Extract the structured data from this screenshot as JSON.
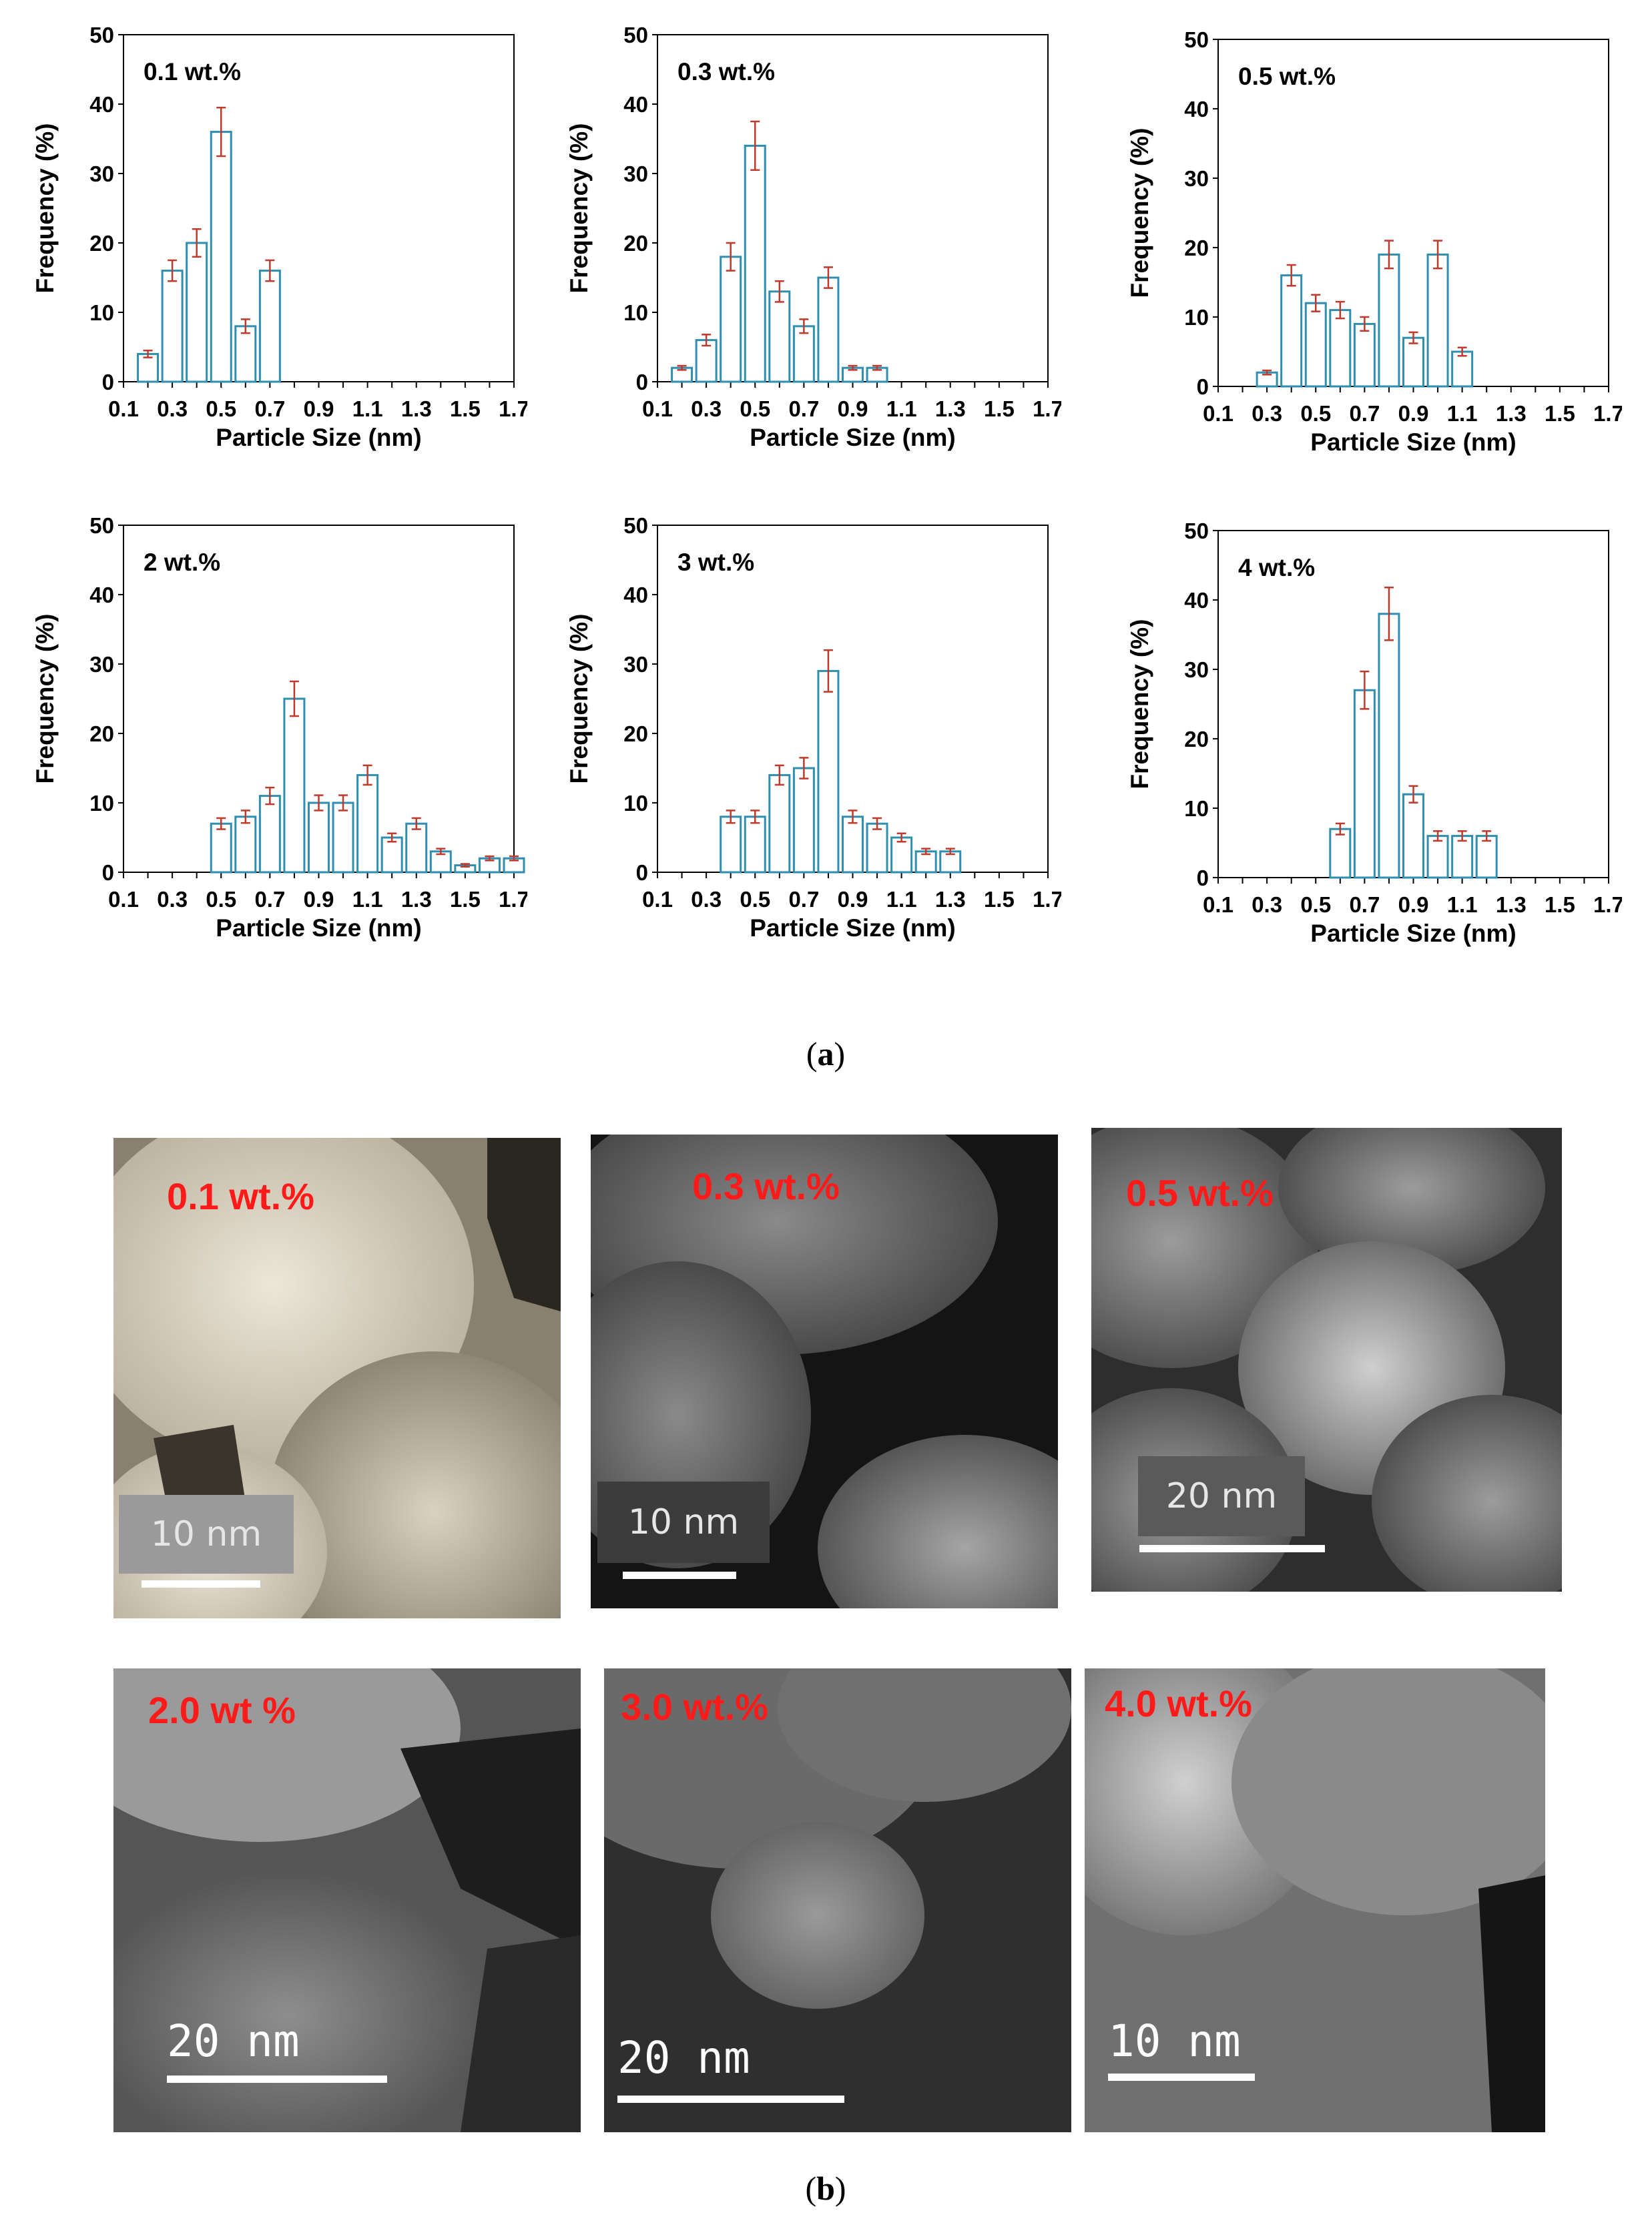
{
  "captions": {
    "a": "a",
    "b": "b"
  },
  "chart_data": [
    {
      "type": "bar",
      "panel_label": "0.1 wt.%",
      "xlabel": "Particle Size (nm)",
      "ylabel": "Frequency (%)",
      "ylim": [
        0,
        50
      ],
      "yticks": [
        0,
        10,
        20,
        30,
        40,
        50
      ],
      "xlim": [
        0.1,
        1.7
      ],
      "xticks": [
        "0.1",
        "0.3",
        "0.5",
        "0.7",
        "0.9",
        "1.1",
        "1.3",
        "1.5",
        "1.7"
      ],
      "x": [
        0.2,
        0.3,
        0.4,
        0.5,
        0.6,
        0.7
      ],
      "values": [
        4,
        16,
        20,
        36,
        8,
        16
      ],
      "errors": [
        0.5,
        1.5,
        2,
        3.5,
        1,
        1.5
      ]
    },
    {
      "type": "bar",
      "panel_label": "0.3 wt.%",
      "xlabel": "Particle Size (nm)",
      "ylabel": "Frequency (%)",
      "ylim": [
        0,
        50
      ],
      "yticks": [
        0,
        10,
        20,
        30,
        40,
        50
      ],
      "xlim": [
        0.1,
        1.7
      ],
      "xticks": [
        "0.1",
        "0.3",
        "0.5",
        "0.7",
        "0.9",
        "1.1",
        "1.3",
        "1.5",
        "1.7"
      ],
      "x": [
        0.2,
        0.3,
        0.4,
        0.5,
        0.6,
        0.7,
        0.8,
        0.9,
        1.0
      ],
      "values": [
        2,
        6,
        18,
        34,
        13,
        8,
        15,
        2,
        2
      ],
      "errors": [
        0.3,
        0.8,
        2,
        3.5,
        1.5,
        1,
        1.5,
        0.3,
        0.3
      ]
    },
    {
      "type": "bar",
      "panel_label": "0.5 wt.%",
      "xlabel": "Particle Size (nm)",
      "ylabel": "Frequency (%)",
      "ylim": [
        0,
        50
      ],
      "yticks": [
        0,
        10,
        20,
        30,
        40,
        50
      ],
      "xlim": [
        0.1,
        1.7
      ],
      "xticks": [
        "0.1",
        "0.3",
        "0.5",
        "0.7",
        "0.9",
        "1.1",
        "1.3",
        "1.5",
        "1.7"
      ],
      "x": [
        0.3,
        0.4,
        0.5,
        0.6,
        0.7,
        0.8,
        0.9,
        1.0,
        1.1
      ],
      "values": [
        2,
        16,
        12,
        11,
        9,
        19,
        7,
        19,
        5
      ],
      "errors": [
        0.3,
        1.5,
        1.2,
        1.2,
        1,
        2,
        0.8,
        2,
        0.6
      ]
    },
    {
      "type": "bar",
      "panel_label": "2 wt.%",
      "xlabel": "Particle Size (nm)",
      "ylabel": "Frequency (%)",
      "ylim": [
        0,
        50
      ],
      "yticks": [
        0,
        10,
        20,
        30,
        40,
        50
      ],
      "xlim": [
        0.1,
        1.7
      ],
      "xticks": [
        "0.1",
        "0.3",
        "0.5",
        "0.7",
        "0.9",
        "1.1",
        "1.3",
        "1.5",
        "1.7"
      ],
      "x": [
        0.5,
        0.6,
        0.7,
        0.8,
        0.9,
        1.0,
        1.1,
        1.2,
        1.3,
        1.4,
        1.5,
        1.6,
        1.7
      ],
      "values": [
        7,
        8,
        11,
        25,
        10,
        10,
        14,
        5,
        7,
        3,
        1,
        2,
        2
      ],
      "errors": [
        0.8,
        0.9,
        1.2,
        2.5,
        1.1,
        1.1,
        1.4,
        0.6,
        0.8,
        0.4,
        0.2,
        0.3,
        0.3
      ]
    },
    {
      "type": "bar",
      "panel_label": "3 wt.%",
      "xlabel": "Particle Size (nm)",
      "ylabel": "Frequency (%)",
      "ylim": [
        0,
        50
      ],
      "yticks": [
        0,
        10,
        20,
        30,
        40,
        50
      ],
      "xlim": [
        0.1,
        1.7
      ],
      "xticks": [
        "0.1",
        "0.3",
        "0.5",
        "0.7",
        "0.9",
        "1.1",
        "1.3",
        "1.5",
        "1.7"
      ],
      "x": [
        0.4,
        0.5,
        0.6,
        0.7,
        0.8,
        0.9,
        1.0,
        1.1,
        1.2,
        1.3
      ],
      "values": [
        8,
        8,
        14,
        15,
        29,
        8,
        7,
        5,
        3,
        3
      ],
      "errors": [
        0.9,
        0.9,
        1.4,
        1.5,
        3,
        0.9,
        0.8,
        0.6,
        0.4,
        0.4
      ]
    },
    {
      "type": "bar",
      "panel_label": "4 wt.%",
      "xlabel": "Particle Size (nm)",
      "ylabel": "Frequency (%)",
      "ylim": [
        0,
        50
      ],
      "yticks": [
        0,
        10,
        20,
        30,
        40,
        50
      ],
      "xlim": [
        0.1,
        1.7
      ],
      "xticks": [
        "0.1",
        "0.3",
        "0.5",
        "0.7",
        "0.9",
        "1.1",
        "1.3",
        "1.5",
        "1.7"
      ],
      "x": [
        0.6,
        0.7,
        0.8,
        0.9,
        1.0,
        1.1,
        1.2
      ],
      "values": [
        7,
        27,
        38,
        12,
        6,
        6,
        6
      ],
      "errors": [
        0.8,
        2.7,
        3.8,
        1.2,
        0.7,
        0.7,
        0.7
      ]
    }
  ],
  "tem_images": [
    {
      "label": "0.1 wt.%",
      "scale": "10 nm",
      "tone": "sepia"
    },
    {
      "label": "0.3 wt.%",
      "scale": "10 nm",
      "tone": "gray"
    },
    {
      "label": "0.5 wt.%",
      "scale": "20 nm",
      "tone": "gray"
    },
    {
      "label": "2.0 wt %",
      "scale": "20  nm",
      "tone": "gray"
    },
    {
      "label": "3.0 wt.%",
      "scale": "20  nm",
      "tone": "gray"
    },
    {
      "label": "4.0 wt.%",
      "scale": "10 nm",
      "tone": "gray"
    }
  ],
  "colors": {
    "bar_fill": "#ffffff",
    "bar_stroke": "#2e8fb0",
    "error": "#c0392b",
    "axis": "#000000",
    "tem_label": "#ff1a1a"
  }
}
